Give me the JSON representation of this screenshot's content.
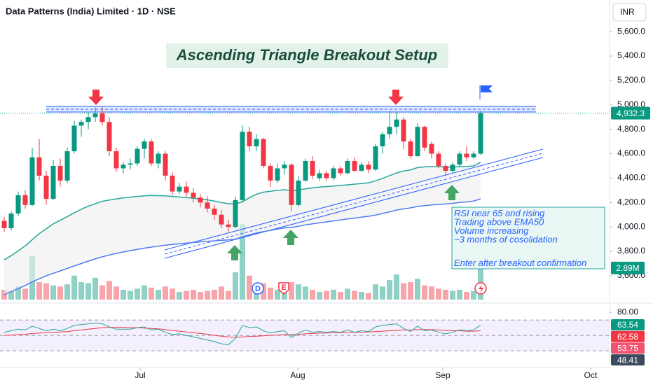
{
  "chart_data": {
    "type": "candlestick",
    "header": "Data Patterns (India) Limited · 1D · NSE",
    "currency": "INR",
    "title": "Ascending Triangle Breakout Setup",
    "up_color": "#089981",
    "down_color": "#f23645",
    "ylim": [
      3376,
      5859
    ],
    "yticks": [
      {
        "value": 3600,
        "label": "3,600.0"
      },
      {
        "value": 3800,
        "label": "3,800.0"
      },
      {
        "value": 4000,
        "label": "4,000.0"
      },
      {
        "value": 4200,
        "label": "4,200.0"
      },
      {
        "value": 4400,
        "label": "4,400.0"
      },
      {
        "value": 4600,
        "label": "4,600.0"
      },
      {
        "value": 4800,
        "label": "4,800.0"
      },
      {
        "value": 5000,
        "label": "5,000.0"
      },
      {
        "value": 5200,
        "label": "5,200.0"
      },
      {
        "value": 5400,
        "label": "5,400.0"
      },
      {
        "value": 5600,
        "label": "5,600.0"
      }
    ],
    "xlim": [
      -0.6,
      86.4
    ],
    "xticks": [
      {
        "value": 19.4,
        "label": "Jul"
      },
      {
        "value": 41.9,
        "label": "Aug"
      },
      {
        "value": 62.6,
        "label": "Sep"
      },
      {
        "value": 83.7,
        "label": "Oct"
      }
    ],
    "candles": [
      [
        4050,
        4080,
        3960,
        3990
      ],
      [
        3990,
        4130,
        3970,
        4110
      ],
      [
        4110,
        4290,
        4090,
        4260
      ],
      [
        4260,
        4300,
        4150,
        4180
      ],
      [
        4180,
        4650,
        4170,
        4570
      ],
      [
        4570,
        4720,
        4380,
        4420
      ],
      [
        4420,
        4460,
        4180,
        4230
      ],
      [
        4230,
        4550,
        4220,
        4500
      ],
      [
        4500,
        4560,
        4330,
        4380
      ],
      [
        4380,
        4650,
        4360,
        4620
      ],
      [
        4620,
        4870,
        4600,
        4830
      ],
      [
        4830,
        4880,
        4740,
        4860
      ],
      [
        4860,
        4940,
        4800,
        4900
      ],
      [
        4900,
        4980,
        4860,
        4930
      ],
      [
        4930,
        4980,
        4830,
        4860
      ],
      [
        4860,
        4900,
        4580,
        4620
      ],
      [
        4620,
        4650,
        4450,
        4480
      ],
      [
        4480,
        4530,
        4440,
        4510
      ],
      [
        4510,
        4560,
        4470,
        4520
      ],
      [
        4520,
        4660,
        4500,
        4640
      ],
      [
        4640,
        4720,
        4560,
        4700
      ],
      [
        4700,
        4720,
        4500,
        4520
      ],
      [
        4520,
        4620,
        4480,
        4600
      ],
      [
        4600,
        4620,
        4380,
        4420
      ],
      [
        4420,
        4450,
        4260,
        4290
      ],
      [
        4290,
        4360,
        4270,
        4330
      ],
      [
        4330,
        4370,
        4250,
        4280
      ],
      [
        4280,
        4320,
        4200,
        4240
      ],
      [
        4240,
        4270,
        4160,
        4200
      ],
      [
        4200,
        4250,
        4120,
        4150
      ],
      [
        4150,
        4180,
        4060,
        4100
      ],
      [
        4100,
        4140,
        3990,
        4020
      ],
      [
        4020,
        4060,
        3960,
        4000
      ],
      [
        4000,
        4250,
        3990,
        4220
      ],
      [
        4220,
        4830,
        4200,
        4780
      ],
      [
        4780,
        4820,
        4620,
        4660
      ],
      [
        4660,
        4760,
        4620,
        4720
      ],
      [
        4720,
        4730,
        4480,
        4500
      ],
      [
        4500,
        4520,
        4330,
        4380
      ],
      [
        4380,
        4520,
        4360,
        4480
      ],
      [
        4480,
        4540,
        4430,
        4510
      ],
      [
        4510,
        4520,
        4130,
        4180
      ],
      [
        4180,
        4420,
        4170,
        4380
      ],
      [
        4380,
        4560,
        4370,
        4540
      ],
      [
        4540,
        4580,
        4390,
        4420
      ],
      [
        4400,
        4470,
        4380,
        4440
      ],
      [
        4440,
        4460,
        4380,
        4400
      ],
      [
        4400,
        4500,
        4380,
        4480
      ],
      [
        4480,
        4500,
        4420,
        4440
      ],
      [
        4440,
        4560,
        4430,
        4540
      ],
      [
        4540,
        4570,
        4450,
        4460
      ],
      [
        4460,
        4530,
        4450,
        4510
      ],
      [
        4510,
        4540,
        4440,
        4470
      ],
      [
        4470,
        4680,
        4460,
        4660
      ],
      [
        4660,
        4780,
        4600,
        4760
      ],
      [
        4760,
        4950,
        4720,
        4820
      ],
      [
        4820,
        4940,
        4760,
        4880
      ],
      [
        4880,
        4900,
        4640,
        4700
      ],
      [
        4700,
        4720,
        4560,
        4580
      ],
      [
        4580,
        4850,
        4570,
        4820
      ],
      [
        4820,
        4830,
        4620,
        4650
      ],
      [
        4680,
        4700,
        4560,
        4600
      ],
      [
        4600,
        4620,
        4480,
        4500
      ],
      [
        4500,
        4520,
        4420,
        4460
      ],
      [
        4460,
        4530,
        4440,
        4510
      ],
      [
        4510,
        4620,
        4490,
        4600
      ],
      [
        4600,
        4660,
        4540,
        4570
      ],
      [
        4570,
        4620,
        4560,
        4600
      ],
      [
        4600,
        4950,
        4590,
        4932.3
      ]
    ],
    "close_label": "4,932.3",
    "series": [
      {
        "name": "EMA20",
        "color": "#26a69a",
        "values": [
          3730,
          3765,
          3805,
          3845,
          3895,
          3945,
          3985,
          4025,
          4055,
          4085,
          4115,
          4145,
          4170,
          4190,
          4210,
          4220,
          4230,
          4238,
          4244,
          4250,
          4255,
          4258,
          4256,
          4255,
          4250,
          4245,
          4240,
          4235,
          4230,
          4222,
          4212,
          4200,
          4190,
          4188,
          4205,
          4240,
          4268,
          4285,
          4292,
          4300,
          4305,
          4295,
          4302,
          4312,
          4320,
          4326,
          4330,
          4335,
          4340,
          4345,
          4350,
          4356,
          4362,
          4378,
          4398,
          4420,
          4442,
          4458,
          4468,
          4486,
          4492,
          4494,
          4494,
          4490,
          4490,
          4494,
          4496,
          4500,
          4530
        ]
      },
      {
        "name": "EMA50",
        "color": "#4f7cf0",
        "values": [
          3445,
          3470,
          3495,
          3520,
          3550,
          3575,
          3600,
          3620,
          3640,
          3660,
          3680,
          3700,
          3720,
          3738,
          3755,
          3770,
          3783,
          3795,
          3806,
          3816,
          3826,
          3835,
          3843,
          3850,
          3856,
          3862,
          3867,
          3872,
          3877,
          3882,
          3886,
          3890,
          3894,
          3900,
          3918,
          3935,
          3950,
          3962,
          3972,
          3982,
          3992,
          3995,
          4005,
          4017,
          4025,
          4033,
          4041,
          4049,
          4057,
          4065,
          4072,
          4080,
          4087,
          4097,
          4110,
          4124,
          4138,
          4148,
          4156,
          4168,
          4174,
          4180,
          4184,
          4188,
          4193,
          4200,
          4205,
          4212,
          4230
        ]
      }
    ],
    "volume": {
      "values": [
        0.9,
        0.8,
        1.2,
        1.0,
        4.0,
        1.6,
        1.5,
        1.3,
        1.2,
        1.4,
        2.2,
        1.6,
        1.5,
        2.0,
        1.3,
        1.7,
        1.2,
        0.9,
        0.8,
        1.0,
        1.3,
        1.1,
        0.9,
        1.2,
        1.0,
        0.7,
        0.8,
        0.9,
        0.7,
        0.8,
        0.9,
        1.2,
        0.8,
        2.5,
        6.9,
        2.2,
        1.2,
        1.5,
        1.1,
        0.9,
        0.8,
        1.6,
        1.4,
        1.2,
        0.9,
        0.7,
        0.8,
        0.9,
        0.7,
        1.0,
        0.8,
        0.7,
        0.6,
        1.4,
        1.2,
        1.8,
        2.3,
        1.5,
        1.6,
        1.9,
        1.3,
        1.2,
        1.0,
        0.9,
        0.8,
        0.9,
        0.7,
        0.8,
        2.89
      ],
      "last_label": "2.89M"
    },
    "rsi": {
      "ylim": [
        11,
        88.3
      ],
      "yticks": [
        {
          "value": 80,
          "label": "80.00"
        }
      ],
      "bands": [
        70,
        50,
        30
      ],
      "line": {
        "color": "#26a69a",
        "values": [
          54,
          56,
          58,
          57,
          62,
          59,
          56,
          58,
          56,
          59,
          63,
          64,
          65,
          66,
          65,
          61,
          58,
          58,
          58,
          60,
          61,
          57,
          58,
          54,
          51,
          52,
          50,
          48,
          46,
          44,
          42,
          39,
          38,
          46,
          63,
          60,
          61,
          56,
          53,
          55,
          56,
          47,
          53,
          57,
          54,
          55,
          54,
          55,
          54,
          57,
          54,
          56,
          55,
          61,
          63,
          64,
          65,
          59,
          55,
          62,
          56,
          57,
          54,
          52,
          54,
          57,
          56,
          57,
          63.54
        ]
      },
      "ma": {
        "color": "#f23645",
        "values": [
          50,
          50.5,
          51,
          51.5,
          52.5,
          53,
          53.5,
          54,
          54.5,
          55,
          56,
          57,
          58,
          59,
          60,
          60.5,
          60.5,
          60.5,
          60,
          60,
          59.5,
          59,
          58.5,
          57.5,
          56.5,
          55.5,
          54.5,
          53.5,
          52.5,
          51.5,
          50,
          49,
          48,
          47.5,
          48,
          48.5,
          49,
          49.5,
          50,
          50.5,
          51,
          51,
          51.5,
          52,
          52.5,
          53,
          53,
          53.5,
          53.5,
          54,
          54,
          54,
          54.5,
          55,
          55.5,
          56,
          56.5,
          57,
          57,
          57.5,
          57.5,
          57.5,
          57,
          56.5,
          56,
          56,
          55.5,
          55.5,
          56
        ]
      },
      "tags": [
        {
          "value": 63.54,
          "label": "63.54",
          "color": "#089981"
        },
        {
          "value": 62.58,
          "label": "62.58",
          "color": "#f23645"
        },
        {
          "value": 53.75,
          "label": "53.75",
          "color": "#ef5370"
        },
        {
          "value": 48.41,
          "label": "48.41",
          "color": "#3b4a5e"
        }
      ]
    },
    "events": [
      "D",
      "E"
    ],
    "note": {
      "lines": [
        "RSI near 65 and rising",
        "Trading above EMA50",
        "Volume increasing",
        "~3 months of cosolidation"
      ],
      "action": "Enter after breakout confirmation"
    }
  }
}
